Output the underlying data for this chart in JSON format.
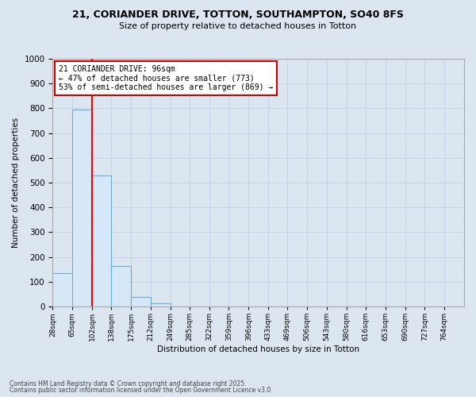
{
  "title_line1": "21, CORIANDER DRIVE, TOTTON, SOUTHAMPTON, SO40 8FS",
  "title_line2": "Size of property relative to detached houses in Totton",
  "xlabel": "Distribution of detached houses by size in Totton",
  "ylabel": "Number of detached properties",
  "footer_line1": "Contains HM Land Registry data © Crown copyright and database right 2025.",
  "footer_line2": "Contains public sector information licensed under the Open Government Licence v3.0.",
  "bins": [
    28,
    65,
    102,
    138,
    175,
    212,
    249,
    285,
    322,
    359,
    396,
    433,
    469,
    506,
    543,
    580,
    616,
    653,
    690,
    727,
    764
  ],
  "counts": [
    135,
    795,
    528,
    163,
    38,
    12,
    0,
    0,
    0,
    0,
    0,
    0,
    0,
    0,
    0,
    0,
    0,
    0,
    0,
    0
  ],
  "bar_color": "#d6e8f7",
  "bar_edge_color": "#6aaed6",
  "grid_color": "#c8d4e8",
  "bg_color": "#dce6f0",
  "red_line_x": 102,
  "annotation_text": "21 CORIANDER DRIVE: 96sqm\n← 47% of detached houses are smaller (773)\n53% of semi-detached houses are larger (869) →",
  "annotation_box_color": "#ffffff",
  "annotation_box_edge": "#cc0000",
  "ylim": [
    0,
    1000
  ],
  "yticks": [
    0,
    100,
    200,
    300,
    400,
    500,
    600,
    700,
    800,
    900,
    1000
  ]
}
